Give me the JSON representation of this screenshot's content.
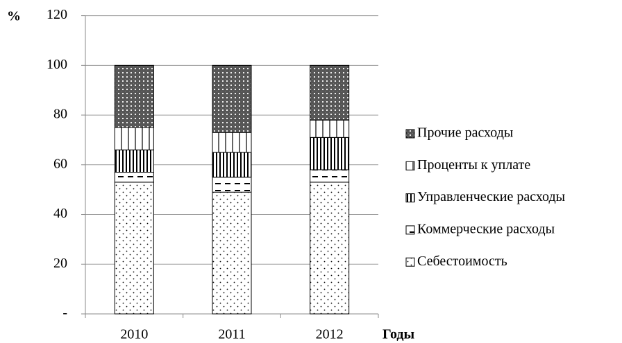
{
  "chart_data": {
    "type": "stacked_bar",
    "y_label": "%",
    "x_label": "Годы",
    "categories": [
      "2010",
      "2011",
      "2012"
    ],
    "series": [
      {
        "name": "Себестоимость",
        "pattern": "dots",
        "values": [
          53,
          49,
          53
        ]
      },
      {
        "name": "Коммерческие расходы",
        "pattern": "dash",
        "values": [
          4,
          6,
          5
        ]
      },
      {
        "name": "Управленческие расходы",
        "pattern": "vdense",
        "values": [
          9,
          10,
          13
        ]
      },
      {
        "name": "Проценты к уплате",
        "pattern": "vsparse",
        "values": [
          9,
          8,
          7
        ]
      },
      {
        "name": "Прочие расходы",
        "pattern": "cross",
        "values": [
          25,
          27,
          22
        ]
      }
    ],
    "ylim": [
      0,
      120
    ],
    "yticks": [
      {
        "value": 0,
        "label": "-"
      },
      20,
      40,
      60,
      80,
      100,
      120
    ],
    "grid": true,
    "legend": "right",
    "legend_order": "reversed"
  }
}
